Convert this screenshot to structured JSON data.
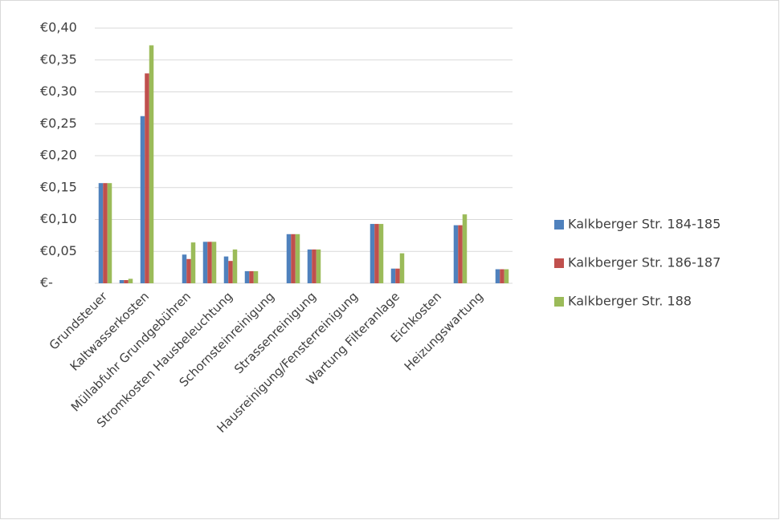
{
  "chart_data": {
    "type": "bar",
    "categories": [
      "Grundsteuer",
      null,
      "Kaltwasserkosten",
      null,
      "Müllabfuhr Grundgebühren",
      null,
      "Stromkosten Hausbeleuchtung",
      null,
      "Schornsteinreinigung",
      null,
      "Strassenreinigung",
      null,
      "Hausreinigung/Fensterreinigung",
      null,
      "Wartung Filteranlage",
      null,
      "Eichkosten",
      null,
      "Heizungswartung",
      null
    ],
    "series": [
      {
        "name": "Kalkberger Str. 184-185",
        "color": "#4f81bd",
        "values": [
          0.157,
          0.005,
          0.262,
          0,
          0.045,
          0.065,
          0.042,
          0.019,
          0,
          0.077,
          0.053,
          0,
          0,
          0.093,
          0.023,
          0,
          0,
          0.091,
          0,
          0.022
        ]
      },
      {
        "name": "Kalkberger Str. 186-187",
        "color": "#c0504d",
        "values": [
          0.157,
          0.005,
          0.329,
          0,
          0.038,
          0.065,
          0.035,
          0.019,
          0,
          0.077,
          0.053,
          0,
          0,
          0.093,
          0.023,
          0,
          0,
          0.091,
          0,
          0.022
        ]
      },
      {
        "name": "Kalkberger Str. 188",
        "color": "#9bbb59",
        "values": [
          0.157,
          0.007,
          0.373,
          0,
          0.064,
          0.065,
          0.053,
          0.019,
          0,
          0.077,
          0.053,
          0,
          0,
          0.093,
          0.047,
          0,
          0,
          0.108,
          0,
          0.022
        ]
      }
    ],
    "ylim": [
      0,
      0.4
    ],
    "yticks": [
      {
        "value": 0,
        "label": "€-"
      },
      {
        "value": 0.05,
        "label": "€0,05"
      },
      {
        "value": 0.1,
        "label": "€0,10"
      },
      {
        "value": 0.15,
        "label": "€0,15"
      },
      {
        "value": 0.2,
        "label": "€0,20"
      },
      {
        "value": 0.25,
        "label": "€0,25"
      },
      {
        "value": 0.3,
        "label": "€0,30"
      },
      {
        "value": 0.35,
        "label": "€0,35"
      },
      {
        "value": 0.4,
        "label": "€0,40"
      }
    ],
    "grid": true,
    "legend": "right"
  }
}
